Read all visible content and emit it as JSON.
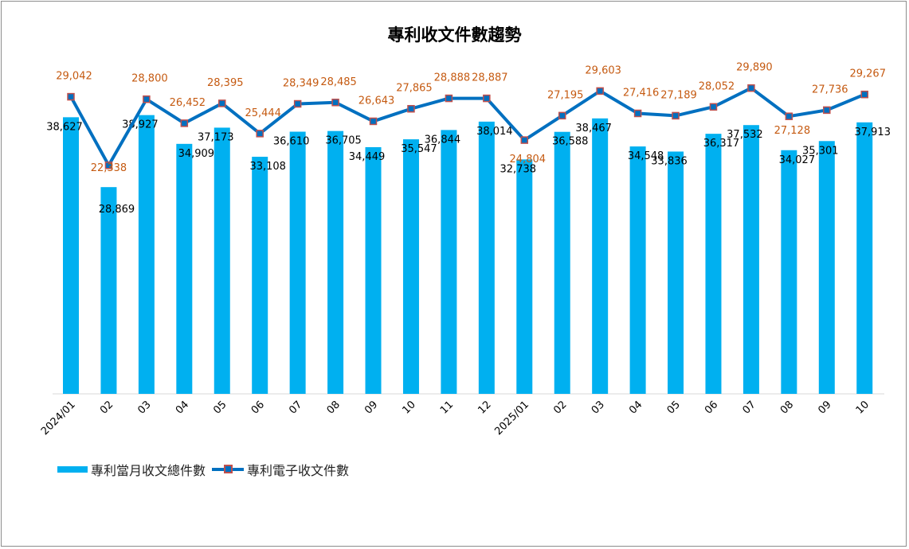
{
  "chart_data": {
    "type": "bar+line",
    "title": "專利收文件數趨勢",
    "categories": [
      "2024/01",
      "02",
      "03",
      "04",
      "05",
      "06",
      "07",
      "08",
      "09",
      "10",
      "11",
      "12",
      "2025/01",
      "02",
      "03",
      "04",
      "05",
      "06",
      "07",
      "08",
      "09",
      "10"
    ],
    "series": [
      {
        "name": "專利當月收文總件數",
        "type": "bar",
        "axis": "primary",
        "color": "#00b0f0",
        "values": [
          38627,
          28869,
          38927,
          34909,
          37173,
          33108,
          36610,
          36705,
          34449,
          35547,
          36844,
          38014,
          32738,
          36588,
          38467,
          34548,
          33836,
          36317,
          37532,
          34027,
          35301,
          37913
        ],
        "labels": [
          "38,627",
          "28,869",
          "38,927",
          "34,909",
          "37,173",
          "33,108",
          "36,610",
          "36,705",
          "34,449",
          "35,547",
          "36,844",
          "38,014",
          "32,738",
          "36,588",
          "38,467",
          "34,548",
          "33,836",
          "36,317",
          "37,532",
          "34,027",
          "35,301",
          "37,913"
        ]
      },
      {
        "name": "專利電子收文件數",
        "type": "line",
        "axis": "secondary",
        "color": "#0070c0",
        "marker_border": "#c0504d",
        "label_color": "#c55a11",
        "values": [
          29042,
          22338,
          28800,
          26452,
          28395,
          25444,
          28349,
          28485,
          26643,
          27865,
          28888,
          28887,
          24804,
          27195,
          29603,
          27416,
          27189,
          28052,
          29890,
          27128,
          27736,
          29267
        ],
        "labels": [
          "29,042",
          "22,338",
          "28,800",
          "26,452",
          "28,395",
          "25,444",
          "28,349",
          "28,485",
          "26,643",
          "27,865",
          "28,888",
          "28,887",
          "24,804",
          "27,195",
          "29,603",
          "27,416",
          "27,189",
          "28,052",
          "29,890",
          "27,128",
          "27,736",
          "29,267"
        ]
      }
    ],
    "primary_ylim": [
      0,
      50000
    ],
    "secondary_ylim": [
      0,
      35000
    ],
    "axes_visible": false,
    "grid": false,
    "legend_position": "bottom-left"
  },
  "legend": {
    "bar_label": "專利當月收文總件數",
    "line_label": "專利電子收文件數"
  }
}
